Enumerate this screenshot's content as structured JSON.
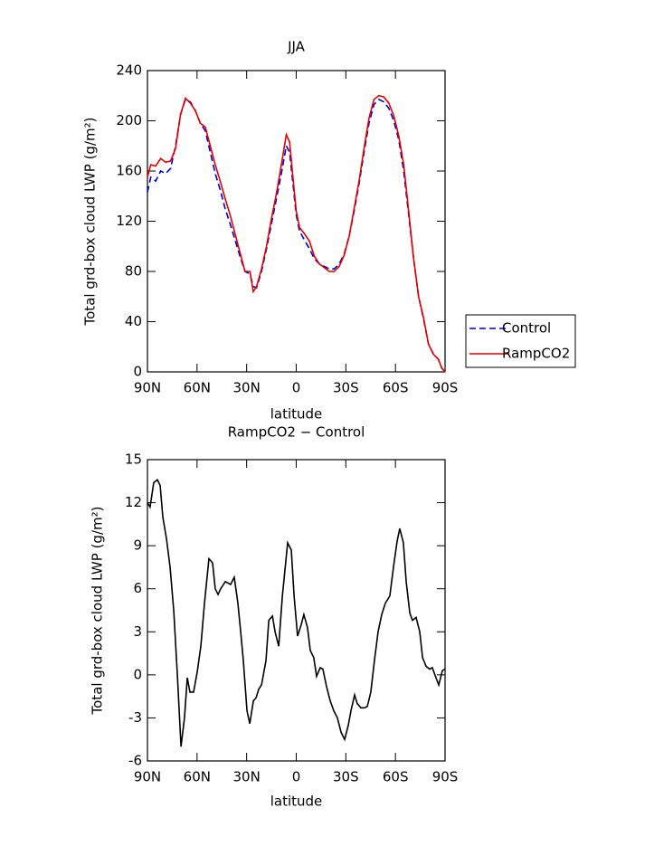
{
  "chart_data": [
    {
      "type": "line",
      "title": "JJA",
      "x_label": "latitude",
      "y_label": "Total grd-box cloud LWP (g/m²)",
      "x": [
        90,
        88,
        85,
        82,
        79,
        76,
        73,
        70,
        67,
        64,
        61,
        58,
        55,
        52,
        49,
        46,
        43,
        40,
        37,
        34,
        31,
        28,
        26,
        24,
        21,
        18,
        15,
        12,
        9,
        6,
        4,
        2,
        0,
        -2,
        -5,
        -8,
        -11,
        -14,
        -17,
        -20,
        -23,
        -26,
        -29,
        -32,
        -35,
        -38,
        -41,
        -44,
        -47,
        -50,
        -53,
        -56,
        -59,
        -62,
        -65,
        -68,
        -71,
        -74,
        -77,
        -80,
        -83,
        -86,
        -88,
        -90
      ],
      "series": [
        {
          "name": "Control",
          "color": "#0000cc",
          "style": "dashed",
          "values": [
            143,
            155,
            152,
            160,
            158,
            162,
            180,
            205,
            217,
            215,
            208,
            198,
            192,
            175,
            158,
            145,
            130,
            118,
            105,
            92,
            80,
            78,
            68,
            67,
            80,
            98,
            118,
            138,
            158,
            180,
            175,
            150,
            125,
            112,
            105,
            98,
            90,
            86,
            84,
            82,
            82,
            86,
            94,
            108,
            128,
            150,
            175,
            198,
            213,
            217,
            215,
            210,
            200,
            185,
            160,
            125,
            90,
            60,
            42,
            22,
            14,
            10,
            3,
            0
          ]
        },
        {
          "name": "RampCO2",
          "color": "#dd0000",
          "style": "solid",
          "values": [
            155,
            165,
            164,
            170,
            167,
            168,
            178,
            205,
            218,
            214,
            208,
            198,
            195,
            180,
            165,
            152,
            138,
            125,
            110,
            95,
            80,
            80,
            64,
            68,
            82,
            100,
            122,
            142,
            165,
            189,
            183,
            155,
            128,
            115,
            110,
            104,
            92,
            86,
            83,
            80,
            80,
            84,
            93,
            108,
            130,
            152,
            178,
            202,
            217,
            220,
            219,
            214,
            204,
            188,
            165,
            128,
            90,
            60,
            43,
            22,
            14,
            10,
            3,
            0
          ]
        }
      ],
      "xlim": [
        90,
        -90
      ],
      "xticks": [
        {
          "value": 90,
          "label": "90N"
        },
        {
          "value": 60,
          "label": "60N"
        },
        {
          "value": 30,
          "label": "30N"
        },
        0,
        {
          "value": -30,
          "label": "30S"
        },
        {
          "value": -60,
          "label": "60S"
        },
        {
          "value": -90,
          "label": "90S"
        }
      ],
      "ylim": [
        0,
        240
      ],
      "yticks": [
        0,
        40,
        80,
        120,
        160,
        200,
        240
      ],
      "legend": "right"
    },
    {
      "type": "line",
      "title": "RampCO2 − Control",
      "x_label": "latitude",
      "y_label": "Total grd-box cloud LWP (g/m²)",
      "x": [
        90,
        88.4,
        86.2,
        84,
        82.3,
        80.7,
        78.5,
        76.3,
        74.1,
        71.9,
        69.7,
        67.6,
        65.9,
        64.3,
        62.1,
        59.9,
        57.7,
        55.5,
        52.8,
        50.6,
        49,
        47.3,
        45.7,
        42.9,
        39.7,
        37.5,
        35.3,
        33.6,
        32,
        29.8,
        28.1,
        25.9,
        24.3,
        22.7,
        21,
        18.3,
        16.6,
        14.4,
        12.8,
        10.6,
        8.4,
        5.2,
        3,
        1.3,
        -0.8,
        -3,
        -4.6,
        -6.8,
        -8.5,
        -10.6,
        -12.3,
        -14.5,
        -16.1,
        -18.3,
        -20.5,
        -22.7,
        -24.9,
        -27.1,
        -29.3,
        -31.5,
        -33.1,
        -35.3,
        -36.9,
        -39.1,
        -41.3,
        -43,
        -45.1,
        -47.3,
        -49.5,
        -51.7,
        -53.9,
        -56.6,
        -58.8,
        -61,
        -62.6,
        -64.8,
        -66.5,
        -68.7,
        -70.3,
        -72.5,
        -74.7,
        -76.4,
        -78.5,
        -80.7,
        -82.3,
        -84.5,
        -86.2,
        -88.4,
        -90
      ],
      "values": [
        12,
        11.7,
        13.4,
        13.6,
        13.2,
        11,
        9.5,
        7.5,
        4.5,
        0,
        -5,
        -3,
        -0.2,
        -1.2,
        -1.2,
        0.2,
        2,
        5,
        8.1,
        7.8,
        6,
        5.6,
        6,
        6.5,
        6.3,
        6.8,
        5,
        3,
        1,
        -2.5,
        -3.4,
        -1.8,
        -1.6,
        -1,
        -0.7,
        1,
        3.8,
        4.1,
        3,
        2,
        5.5,
        9.2,
        8.7,
        5.5,
        2.7,
        3.5,
        4.2,
        3.3,
        1.7,
        1.2,
        -0.1,
        0.5,
        0.4,
        -0.8,
        -1.8,
        -2.5,
        -3,
        -4,
        -4.5,
        -3.5,
        -2.5,
        -1.4,
        -2,
        -2.3,
        -2.3,
        -2.2,
        -1.2,
        1,
        3,
        4.2,
        5,
        5.5,
        7.5,
        9.3,
        10.2,
        9.2,
        6.5,
        4.3,
        3.8,
        4,
        3,
        1.2,
        0.6,
        0.4,
        0.5,
        -0.2,
        -0.7,
        0.3,
        0.4
      ],
      "color": "#000000",
      "xlim": [
        90,
        -90
      ],
      "xticks": [
        {
          "value": 90,
          "label": "90N"
        },
        {
          "value": 60,
          "label": "60N"
        },
        {
          "value": 30,
          "label": "30N"
        },
        0,
        {
          "value": -30,
          "label": "30S"
        },
        {
          "value": -60,
          "label": "60S"
        },
        {
          "value": -90,
          "label": "90S"
        }
      ],
      "ylim": [
        -6,
        15
      ],
      "yticks": [
        -6,
        -3,
        0,
        3,
        6,
        9,
        12,
        15
      ]
    }
  ]
}
